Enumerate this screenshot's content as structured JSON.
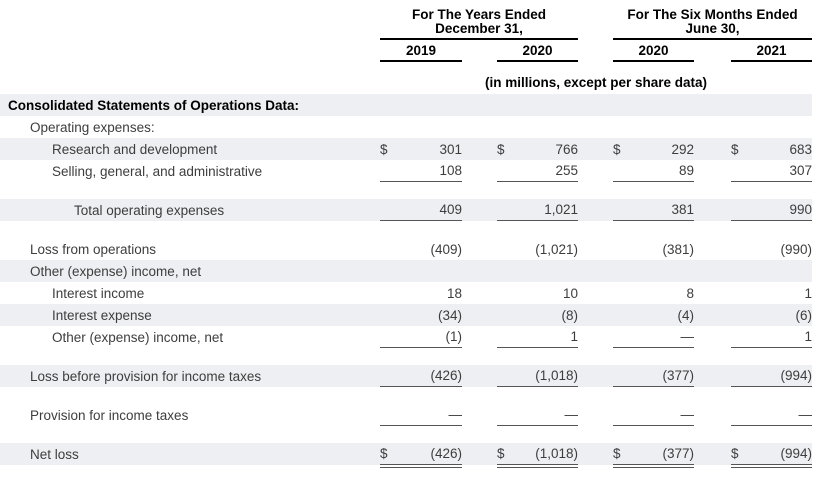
{
  "style": {
    "row_shade": "#edeff2",
    "rule_color": "#555555",
    "header_rule_color": "#000000",
    "text_color": "#3d3d3d",
    "heading_color": "#000000",
    "background": "#ffffff"
  },
  "header": {
    "groups": [
      {
        "title_line1": "For The Years Ended",
        "title_line2": "December 31,",
        "columns": [
          "2019",
          "2020"
        ]
      },
      {
        "title_line1": "For The Six Months Ended",
        "title_line2": "June 30,",
        "columns": [
          "2020",
          "2021"
        ]
      }
    ],
    "subtitle": "(in millions, except per share data)"
  },
  "table": {
    "rows": [
      {
        "label": "Consolidated Statements of Operations Data:",
        "indent": 0,
        "bold": true,
        "shaded": true
      },
      {
        "label": "Operating expenses:",
        "indent": 1,
        "shaded": false
      },
      {
        "label": "Research and development",
        "indent": 2,
        "shaded": true,
        "currency": "$",
        "values": [
          "301",
          "766",
          "292",
          "683"
        ]
      },
      {
        "label": "Selling, general, and administrative",
        "indent": 2,
        "shaded": false,
        "values": [
          "108",
          "255",
          "89",
          "307"
        ],
        "underline": "single"
      },
      {
        "spacer": true
      },
      {
        "label": "Total operating expenses",
        "indent": 3,
        "shaded": true,
        "values": [
          "409",
          "1,021",
          "381",
          "990"
        ],
        "underline": "single"
      },
      {
        "spacer": true
      },
      {
        "label": "Loss from operations",
        "indent": 1,
        "shaded": false,
        "values": [
          "(409)",
          "(1,021)",
          "(381)",
          "(990)"
        ]
      },
      {
        "label": "Other (expense) income, net",
        "indent": 1,
        "shaded": true
      },
      {
        "label": "Interest income",
        "indent": 2,
        "shaded": false,
        "values": [
          "18",
          "10",
          "8",
          "1"
        ]
      },
      {
        "label": "Interest expense",
        "indent": 2,
        "shaded": true,
        "values": [
          "(34)",
          "(8)",
          "(4)",
          "(6)"
        ]
      },
      {
        "label": "Other (expense) income, net",
        "indent": 2,
        "shaded": false,
        "values": [
          "(1)",
          "1",
          "—",
          "1"
        ],
        "underline": "single"
      },
      {
        "spacer": true
      },
      {
        "label": "Loss before provision for income taxes",
        "indent": 1,
        "shaded": true,
        "values": [
          "(426)",
          "(1,018)",
          "(377)",
          "(994)"
        ],
        "underline": "single"
      },
      {
        "spacer": true
      },
      {
        "label": "Provision for income taxes",
        "indent": 1,
        "shaded": false,
        "values": [
          "—",
          "—",
          "—",
          "—"
        ],
        "underline": "single"
      },
      {
        "spacer": true
      },
      {
        "label": "Net loss",
        "indent": 1,
        "shaded": true,
        "currency": "$",
        "values": [
          "(426)",
          "(1,018)",
          "(377)",
          "(994)"
        ],
        "underline": "double"
      }
    ]
  }
}
